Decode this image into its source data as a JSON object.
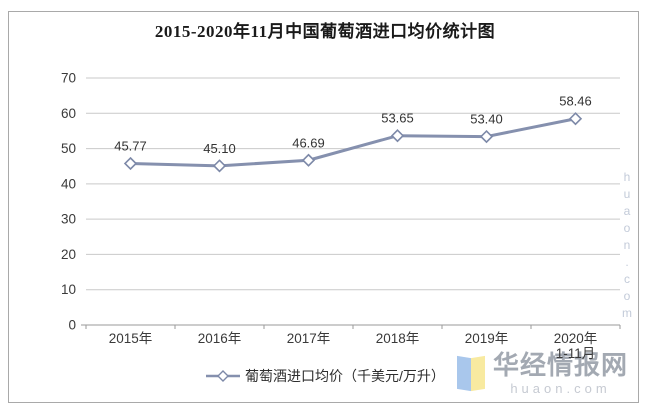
{
  "chart_data": {
    "type": "line",
    "title": "2015-2020年11月中国葡萄酒进口均价统计图",
    "categories": [
      "2015年",
      "2016年",
      "2017年",
      "2018年",
      "2019年",
      "2020年"
    ],
    "category_sublabels": [
      "",
      "",
      "",
      "",
      "",
      "1-11月"
    ],
    "series": [
      {
        "name": "葡萄酒进口均价（千美元/万升）",
        "values": [
          45.77,
          45.1,
          46.69,
          53.65,
          53.4,
          58.46
        ]
      }
    ],
    "xlabel": "",
    "ylabel": "",
    "ylim": [
      0,
      70
    ],
    "ytick_step": 10,
    "grid": true,
    "legend_position": "bottom",
    "marker": "open-diamond",
    "value_decimals": 2
  },
  "colors": {
    "line": "#8590ae",
    "marker_stroke": "#7d89a8",
    "marker_fill": "#ffffff",
    "gridline": "#c9c9c9",
    "axis": "#9a9a9a",
    "tick_text": "#3a3a3a",
    "data_label": "#333333",
    "title_text": "#1a1a1a",
    "logo_blue": "#a9c7ec",
    "logo_yellow": "#f8eaa0",
    "logo_gray": "#a3a9b2",
    "logo_domain_gray": "#c6cad2",
    "watermark": "#c3cbd9"
  },
  "branding": {
    "logo_name": "华经情报网",
    "logo_domain": "huaon.com",
    "watermark_vertical": "huaon.com"
  }
}
